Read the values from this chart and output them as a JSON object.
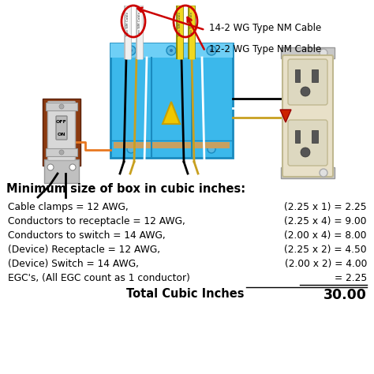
{
  "title_text": "Minimum size of box in cubic inches:",
  "rows": [
    {
      "label": "Cable clamps = 12 AWG,",
      "calc": "(2.25 x 1) = 2.25"
    },
    {
      "label": "Conductors to receptacle = 12 AWG,",
      "calc": "(2.25 x 4) = 9.00"
    },
    {
      "label": "Conductors to switch = 14 AWG,",
      "calc": "(2.00 x 4) = 8.00"
    },
    {
      "label": "(Device) Receptacle = 12 AWG,",
      "calc": "(2.25 x 2) = 4.50"
    },
    {
      "label": "(Device) Switch = 14 AWG,",
      "calc": "(2.00 x 2) = 4.00"
    },
    {
      "label": "EGC's, (All EGC count as 1 conductor)",
      "calc": "= 2.25"
    }
  ],
  "total_label": "Total Cubic Inches",
  "total_value": "30.00",
  "label14": "14-2 WG Type NM Cable",
  "label12": "12-2 WG Type NM Cable",
  "bg_color": "#ffffff",
  "title_fontsize": 10.5,
  "row_fontsize": 8.8,
  "total_fontsize": 10.5,
  "box_color": "#3bb8eb",
  "box_edge_color": "#1a8abf",
  "arrow_color": "#cc0000",
  "cable_white": "#f0f0f0",
  "cable_yellow": "#f0d820",
  "wire_gold": "#c8a020"
}
